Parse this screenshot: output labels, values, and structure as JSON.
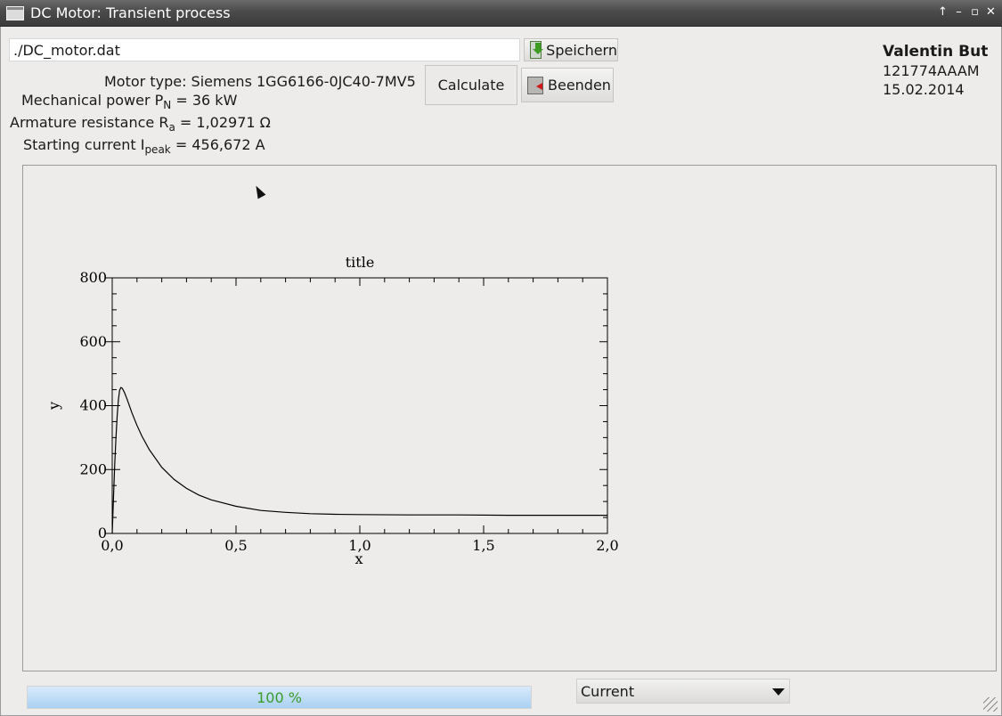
{
  "window": {
    "title": "DC Motor: Transient process",
    "controls": [
      "↑",
      "–",
      "▫",
      "✕"
    ]
  },
  "file": {
    "path": "./DC_motor.dat"
  },
  "toolbar": {
    "save_label": "Speichern",
    "calculate_label": "Calculate",
    "quit_label": "Beenden"
  },
  "motor": {
    "type_label": "Motor type: ",
    "type_value": "Siemens 1GG6166-0JC40-7MV5",
    "power_label": "Mechanical power P",
    "power_sub": "N",
    "power_value": " = 36 kW",
    "resistance_label": "Armature resistance R",
    "resistance_sub": "a",
    "resistance_value": " = 1,02971 Ω",
    "current_label": "Starting current I",
    "current_sub": "peak",
    "current_value": " = 456,672 A"
  },
  "author": {
    "name": "Valentin But",
    "id": "121774AAAM",
    "date": "15.02.2014"
  },
  "chart_data": {
    "type": "line",
    "title": "title",
    "xlabel": "x",
    "ylabel": "y",
    "xlim": [
      0,
      2
    ],
    "ylim": [
      0,
      800
    ],
    "xticks": [
      "0,0",
      "0,5",
      "1,0",
      "1,5",
      "2,0"
    ],
    "yticks": [
      "0",
      "200",
      "400",
      "600",
      "800"
    ],
    "grid": false,
    "series": [
      {
        "x": [
          0,
          0.005,
          0.01,
          0.015,
          0.02,
          0.025,
          0.03,
          0.035,
          0.04,
          0.045,
          0.05,
          0.06,
          0.07,
          0.08,
          0.1,
          0.12,
          0.15,
          0.2,
          0.25,
          0.3,
          0.35,
          0.4,
          0.5,
          0.6,
          0.7,
          0.8,
          0.9,
          1.0,
          1.2,
          1.4,
          1.6,
          1.8,
          2.0
        ],
        "values": [
          0,
          110,
          215,
          300,
          370,
          420,
          448,
          456.7,
          455,
          448,
          440,
          420,
          398,
          377,
          338,
          304,
          262,
          207,
          169,
          141,
          120,
          105,
          85,
          72,
          66,
          62,
          60,
          59,
          58,
          58,
          57,
          57,
          57
        ]
      }
    ]
  },
  "progress": {
    "value": 100,
    "label": "100 %"
  },
  "signal_select": {
    "selected": "Current"
  }
}
